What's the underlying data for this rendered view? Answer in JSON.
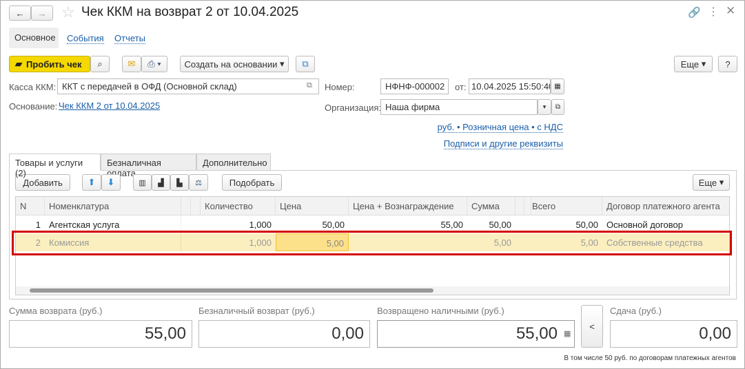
{
  "window": {
    "title": "Чек ККМ на возврат 2 от 10.04.2025"
  },
  "nav_tabs": [
    "Основное",
    "События",
    "Отчеты"
  ],
  "toolbar": {
    "print_check": "Пробить чек",
    "create_based": "Создать на основании",
    "more": "Еще",
    "help": "?"
  },
  "form": {
    "kassa_label": "Касса ККМ:",
    "kassa_value": "ККТ с передачей в ОФД (Основной склад)",
    "osnovanie_label": "Основание:",
    "osnovanie_value": "Чек ККМ 2 от 10.04.2025",
    "nomer_label": "Номер:",
    "nomer_value": "НФНФ-000002",
    "ot_label": "от:",
    "date_value": "10.04.2025 15:50:40",
    "org_label": "Организация:",
    "org_value": "Наша фирма",
    "price_link": "руб. • Розничная цена • с НДС",
    "sign_link": "Подписи и другие реквизиты"
  },
  "tabs": [
    "Товары и услуги (2)",
    "Безналичная оплата",
    "Дополнительно"
  ],
  "table_toolbar": {
    "add": "Добавить",
    "pick": "Подобрать",
    "more": "Еще"
  },
  "table": {
    "columns": [
      "N",
      "Номенклатура",
      "Количество",
      "Цена",
      "Цена + Вознаграждение",
      "Сумма",
      "Всего",
      "Договор платежного агента"
    ],
    "rows": [
      {
        "n": "1",
        "item": "Агентская услуга",
        "qty": "1,000",
        "price": "50,00",
        "price_fee": "55,00",
        "sum": "50,00",
        "total": "50,00",
        "contract": "Основной договор"
      },
      {
        "n": "2",
        "item": "Комиссия",
        "qty": "1,000",
        "price": "5,00",
        "price_fee": "",
        "sum": "5,00",
        "total": "5,00",
        "contract": "Собственные средства"
      }
    ]
  },
  "footer": {
    "return_sum_label": "Сумма возврата (руб.)",
    "return_sum": "55,00",
    "cashless_label": "Безналичный возврат (руб.)",
    "cashless": "0,00",
    "cash_label": "Возвращено наличными (руб.)",
    "cash": "55,00",
    "less_btn": "<",
    "change_label": "Сдача (руб.)",
    "change": "0,00",
    "note": "В том числе 50 руб. по договорам платежных агентов"
  },
  "colors": {
    "accent_yellow": "#f5d800",
    "selected_row": "#fbefc0",
    "highlight": "#d40000",
    "link": "#1a5fa8"
  }
}
